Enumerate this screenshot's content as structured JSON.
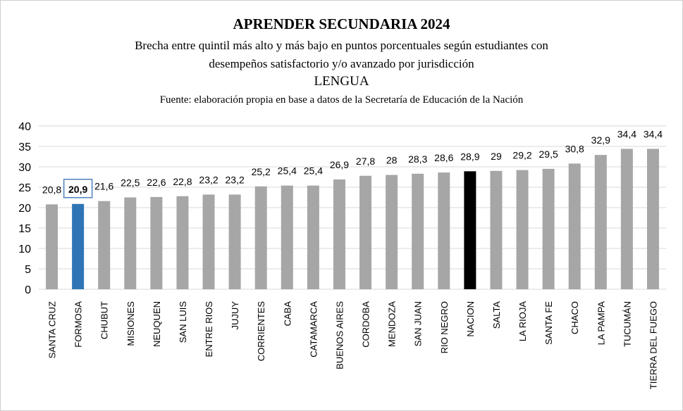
{
  "chart_data": {
    "type": "bar",
    "title": "APRENDER SECUNDARIA 2024",
    "subtitle_line1": "Brecha entre quintil más alto y más bajo en puntos porcentuales según estudiantes con",
    "subtitle_line2": "desempeños satisfactorio y/o avanzado por jurisdicción",
    "subject": "LENGUA",
    "source": "Fuente: elaboración propia en base a datos de la Secretaría de Educación de la Nación",
    "xlabel": "",
    "ylabel": "",
    "ylim": [
      0,
      40
    ],
    "yticks": [
      "0",
      "5",
      "10",
      "15",
      "20",
      "25",
      "30",
      "35",
      "40"
    ],
    "grid": true,
    "categories": [
      "SANTA CRUZ",
      "FORMOSA",
      "CHUBUT",
      "MISIONES",
      "NEUQUEN",
      "SAN LUIS",
      "ENTRE RIOS",
      "JUJUY",
      "CORRIENTES",
      "CABA",
      "CATAMARCA",
      "BUENOS AIRES",
      "CORDOBA",
      "MENDOZA",
      "SAN JUAN",
      "RIO NEGRO",
      "NACION",
      "SALTA",
      "LA RIOJA",
      "SANTA FE",
      "CHACO",
      "LA PAMPA",
      "TUCUMÁN",
      "TIERRA DEL FUEGO"
    ],
    "values": [
      20.8,
      20.9,
      21.6,
      22.5,
      22.6,
      22.8,
      23.2,
      23.2,
      25.2,
      25.4,
      25.4,
      26.9,
      27.8,
      28,
      28.3,
      28.6,
      28.9,
      29,
      29.2,
      29.5,
      30.8,
      32.9,
      34.4,
      34.4
    ],
    "value_labels": [
      "20,8",
      "20,9",
      "21,6",
      "22,5",
      "22,6",
      "22,8",
      "23,2",
      "23,2",
      "25,2",
      "25,4",
      "25,4",
      "26,9",
      "27,8",
      "28",
      "28,3",
      "28,6",
      "28,9",
      "29",
      "29,2",
      "29,5",
      "30,8",
      "32,9",
      "34,4",
      "34,4"
    ],
    "colors": {
      "default": "#a6a6a6",
      "highlight": "#2e75b6",
      "national": "#000000",
      "highlight_label_border": "#4f81bd",
      "grid": "#d9d9d9"
    },
    "highlighted_category": "FORMOSA",
    "national_category": "NACION"
  }
}
